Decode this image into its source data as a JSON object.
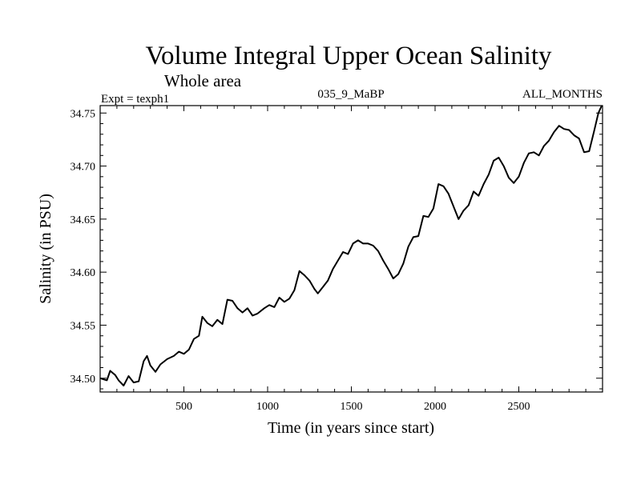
{
  "chart_data": {
    "type": "line",
    "title": "Volume Integral Upper Ocean Salinity",
    "subtitle": "Whole area",
    "left_annotation": "Expt = texph1",
    "center_annotation": "035_9_MaBP",
    "right_annotation": "ALL_MONTHS",
    "xlabel": "Time (in years since start)",
    "ylabel": "Salinity (in PSU)",
    "xlim": [
      0,
      3000
    ],
    "ylim": [
      34.487,
      34.757
    ],
    "xticks": [
      500,
      1000,
      1500,
      2000,
      2500
    ],
    "yticks": [
      "34.50",
      "34.55",
      "34.60",
      "34.65",
      "34.70",
      "34.75"
    ],
    "grid": false,
    "series": [
      {
        "values": [
          [
            0,
            34.5
          ],
          [
            40,
            34.498
          ],
          [
            60,
            34.507
          ],
          [
            90,
            34.503
          ],
          [
            110,
            34.498
          ],
          [
            140,
            34.493
          ],
          [
            170,
            34.502
          ],
          [
            200,
            34.496
          ],
          [
            230,
            34.497
          ],
          [
            260,
            34.516
          ],
          [
            280,
            34.521
          ],
          [
            300,
            34.512
          ],
          [
            330,
            34.506
          ],
          [
            360,
            34.513
          ],
          [
            400,
            34.518
          ],
          [
            440,
            34.521
          ],
          [
            470,
            34.525
          ],
          [
            500,
            34.523
          ],
          [
            530,
            34.527
          ],
          [
            560,
            34.537
          ],
          [
            590,
            34.54
          ],
          [
            610,
            34.558
          ],
          [
            640,
            34.552
          ],
          [
            670,
            34.549
          ],
          [
            700,
            34.555
          ],
          [
            730,
            34.551
          ],
          [
            760,
            34.574
          ],
          [
            790,
            34.573
          ],
          [
            820,
            34.566
          ],
          [
            850,
            34.562
          ],
          [
            880,
            34.566
          ],
          [
            910,
            34.559
          ],
          [
            940,
            34.561
          ],
          [
            980,
            34.566
          ],
          [
            1010,
            34.569
          ],
          [
            1040,
            34.567
          ],
          [
            1070,
            34.576
          ],
          [
            1100,
            34.572
          ],
          [
            1130,
            34.575
          ],
          [
            1160,
            34.583
          ],
          [
            1190,
            34.601
          ],
          [
            1220,
            34.597
          ],
          [
            1250,
            34.592
          ],
          [
            1280,
            34.584
          ],
          [
            1300,
            34.58
          ],
          [
            1330,
            34.586
          ],
          [
            1360,
            34.592
          ],
          [
            1390,
            34.603
          ],
          [
            1420,
            34.611
          ],
          [
            1450,
            34.619
          ],
          [
            1480,
            34.617
          ],
          [
            1510,
            34.627
          ],
          [
            1540,
            34.63
          ],
          [
            1570,
            34.627
          ],
          [
            1600,
            34.627
          ],
          [
            1630,
            34.625
          ],
          [
            1660,
            34.62
          ],
          [
            1690,
            34.611
          ],
          [
            1720,
            34.603
          ],
          [
            1750,
            34.594
          ],
          [
            1780,
            34.598
          ],
          [
            1810,
            34.608
          ],
          [
            1840,
            34.624
          ],
          [
            1870,
            34.633
          ],
          [
            1900,
            34.634
          ],
          [
            1930,
            34.653
          ],
          [
            1960,
            34.652
          ],
          [
            1990,
            34.66
          ],
          [
            2020,
            34.683
          ],
          [
            2050,
            34.681
          ],
          [
            2080,
            34.674
          ],
          [
            2110,
            34.662
          ],
          [
            2140,
            34.65
          ],
          [
            2170,
            34.658
          ],
          [
            2200,
            34.663
          ],
          [
            2230,
            34.676
          ],
          [
            2260,
            34.672
          ],
          [
            2290,
            34.683
          ],
          [
            2320,
            34.692
          ],
          [
            2350,
            34.705
          ],
          [
            2380,
            34.708
          ],
          [
            2410,
            34.7
          ],
          [
            2440,
            34.689
          ],
          [
            2470,
            34.684
          ],
          [
            2500,
            34.69
          ],
          [
            2530,
            34.703
          ],
          [
            2560,
            34.712
          ],
          [
            2590,
            34.713
          ],
          [
            2620,
            34.71
          ],
          [
            2650,
            34.719
          ],
          [
            2680,
            34.724
          ],
          [
            2710,
            34.732
          ],
          [
            2740,
            34.738
          ],
          [
            2770,
            34.735
          ],
          [
            2800,
            34.734
          ],
          [
            2830,
            34.729
          ],
          [
            2860,
            34.726
          ],
          [
            2890,
            34.713
          ],
          [
            2920,
            34.714
          ],
          [
            2950,
            34.733
          ],
          [
            2975,
            34.75
          ],
          [
            2995,
            34.757
          ]
        ]
      }
    ]
  }
}
